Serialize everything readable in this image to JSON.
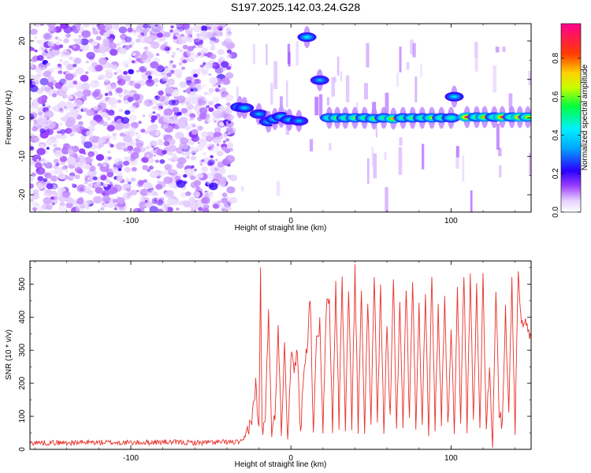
{
  "chart_data": [
    {
      "type": "heatmap",
      "title": "S197.2025.142.03.24.G28",
      "xlabel": "Height of straight line (km)",
      "ylabel": "Frequency (Hz)",
      "xlim": [
        -163,
        150
      ],
      "ylim": [
        -24.5,
        24.5
      ],
      "x_ticks": [
        -100,
        0,
        100
      ],
      "y_ticks": [
        -20,
        -10,
        0,
        10,
        20
      ],
      "colorbar": {
        "label": "Normalized spectral amplitude",
        "range": [
          0,
          0.98
        ],
        "ticks": [
          0.0,
          0.2,
          0.4,
          0.6,
          0.8
        ]
      },
      "noise_region": {
        "x": [
          -163,
          -36
        ],
        "level": 0.15
      },
      "signal_blobs": [
        {
          "x": -32,
          "y": 2.8,
          "v": 0.42
        },
        {
          "x": -29,
          "y": 2.6,
          "v": 0.38
        },
        {
          "x": -20,
          "y": 1.0,
          "v": 0.35
        },
        {
          "x": -14,
          "y": -1.0,
          "v": 0.38
        },
        {
          "x": -10,
          "y": -0.3,
          "v": 0.42
        },
        {
          "x": -6,
          "y": 0.3,
          "v": 0.4
        },
        {
          "x": -1,
          "y": -0.5,
          "v": 0.38
        },
        {
          "x": 5,
          "y": -0.8,
          "v": 0.35
        },
        {
          "x": 10,
          "y": 21.0,
          "v": 0.42
        },
        {
          "x": 18,
          "y": 9.8,
          "v": 0.36
        },
        {
          "x": 24,
          "y": 0.0,
          "v": 0.55
        },
        {
          "x": 29,
          "y": 0.0,
          "v": 0.65
        },
        {
          "x": 34,
          "y": 0.0,
          "v": 0.55
        },
        {
          "x": 40,
          "y": 0.0,
          "v": 0.62
        },
        {
          "x": 46,
          "y": 0.0,
          "v": 0.55
        },
        {
          "x": 52,
          "y": -0.2,
          "v": 0.6
        },
        {
          "x": 58,
          "y": 0.0,
          "v": 0.55
        },
        {
          "x": 64,
          "y": -0.2,
          "v": 0.78
        },
        {
          "x": 70,
          "y": 0.0,
          "v": 0.55
        },
        {
          "x": 76,
          "y": 0.0,
          "v": 0.6
        },
        {
          "x": 82,
          "y": 0.0,
          "v": 0.55
        },
        {
          "x": 88,
          "y": 0.0,
          "v": 0.65
        },
        {
          "x": 94,
          "y": 0.0,
          "v": 0.55
        },
        {
          "x": 100,
          "y": 0.0,
          "v": 0.5
        },
        {
          "x": 102,
          "y": 5.5,
          "v": 0.4
        },
        {
          "x": 110,
          "y": 0.2,
          "v": 0.92
        },
        {
          "x": 116,
          "y": 0.2,
          "v": 0.62
        },
        {
          "x": 121,
          "y": 0.2,
          "v": 0.78
        },
        {
          "x": 127,
          "y": 0.2,
          "v": 0.55
        },
        {
          "x": 132,
          "y": 0.2,
          "v": 0.88
        },
        {
          "x": 138,
          "y": 0.2,
          "v": 0.6
        },
        {
          "x": 143,
          "y": 0.2,
          "v": 0.9
        },
        {
          "x": 148,
          "y": 0.2,
          "v": 0.7
        }
      ]
    },
    {
      "type": "line",
      "title": "",
      "xlabel": "Height of straight line (km)",
      "ylabel": "SNR (10 * v/v)",
      "xlim": [
        -163,
        150
      ],
      "ylim": [
        0,
        570
      ],
      "x_ticks": [
        -100,
        0,
        100
      ],
      "y_ticks": [
        0,
        100,
        200,
        300,
        400,
        500
      ],
      "series": [
        {
          "color": "#e8312b",
          "x": [
            -163,
            -140,
            -120,
            -100,
            -80,
            -60,
            -40,
            -30,
            -24,
            -22,
            -20,
            -19,
            -18,
            -16,
            -14,
            -12,
            -10,
            -8,
            -6,
            -4,
            -2,
            0,
            2,
            4,
            6,
            8,
            10,
            12,
            14,
            16,
            18,
            20,
            22,
            24,
            26,
            28,
            30,
            32,
            34,
            36,
            38,
            40,
            42,
            44,
            46,
            48,
            50,
            52,
            54,
            56,
            58,
            60,
            62,
            64,
            66,
            68,
            70,
            72,
            74,
            76,
            78,
            80,
            82,
            84,
            86,
            88,
            90,
            92,
            94,
            96,
            98,
            100,
            102,
            104,
            106,
            108,
            110,
            112,
            114,
            116,
            118,
            120,
            122,
            124,
            126,
            128,
            130,
            132,
            134,
            136,
            138,
            140,
            142,
            144,
            146,
            148,
            150
          ],
          "values": [
            20,
            20,
            21,
            20,
            22,
            20,
            22,
            22,
            100,
            200,
            50,
            540,
            60,
            80,
            420,
            60,
            90,
            380,
            50,
            320,
            40,
            280,
            250,
            300,
            40,
            250,
            300,
            470,
            60,
            320,
            380,
            40,
            430,
            440,
            60,
            500,
            80,
            520,
            60,
            480,
            80,
            540,
            60,
            500,
            70,
            430,
            80,
            540,
            70,
            500,
            60,
            360,
            80,
            520,
            60,
            450,
            70,
            500,
            80,
            530,
            70,
            420,
            80,
            480,
            60,
            520,
            70,
            420,
            80,
            480,
            60,
            380,
            60,
            490,
            80,
            520,
            60,
            520,
            80,
            490,
            60,
            520,
            70,
            240,
            15,
            500,
            100,
            80,
            430,
            100,
            520,
            60,
            540,
            380,
            400,
            350,
            340
          ]
        }
      ]
    }
  ]
}
